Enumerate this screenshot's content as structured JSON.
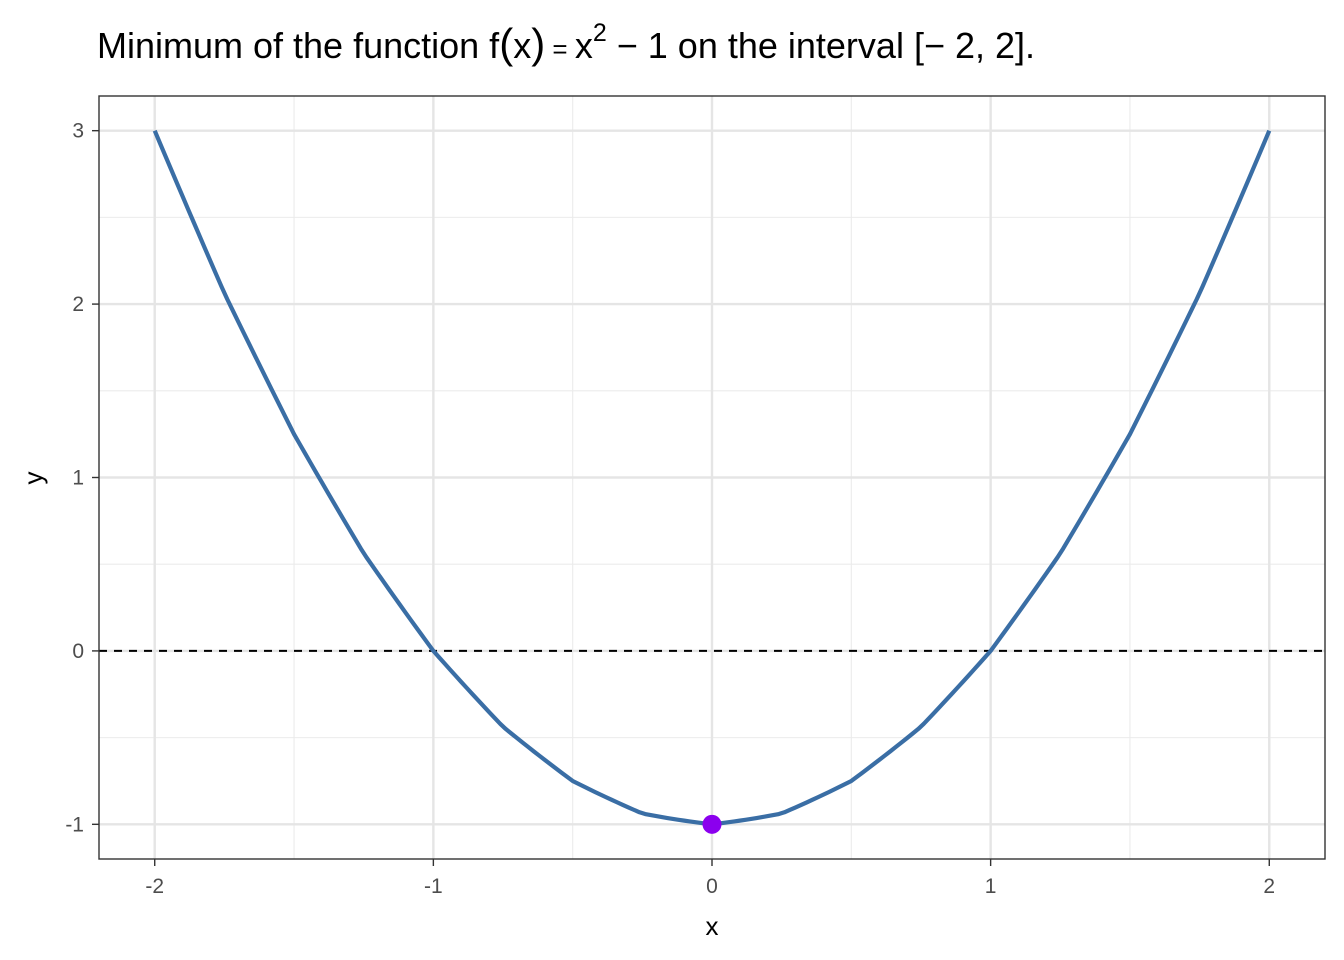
{
  "chart_data": {
    "type": "line",
    "title": {
      "pre": "Minimum of the function ",
      "fn": "f",
      "lparen": "(",
      "arg": "x",
      "rparen": ")",
      "eq": " = ",
      "base": "x",
      "exp": "2",
      "minus": " − 1",
      "post": " on the interval [",
      "int_lo": "− 2, 2",
      "close": "]."
    },
    "xlabel": "x",
    "ylabel": "y",
    "xlim": [
      -2.2,
      2.2
    ],
    "ylim": [
      -1.2,
      3.2
    ],
    "x_ticks": [
      -2,
      -1,
      0,
      1,
      2
    ],
    "x_tick_labels": [
      "-2",
      "-1",
      "0",
      "1",
      "2"
    ],
    "y_ticks": [
      -1,
      0,
      1,
      2,
      3
    ],
    "y_tick_labels": [
      "-1",
      "0",
      "1",
      "2",
      "3"
    ],
    "x_minor": [
      -1.5,
      -0.5,
      0.5,
      1.5
    ],
    "y_minor": [
      -0.5,
      0.5,
      1.5,
      2.5
    ],
    "grid": true,
    "series": [
      {
        "type": "line",
        "color": "#3a6ea5",
        "x": [
          -2.0,
          -1.75,
          -1.5,
          -1.25,
          -1.0,
          -0.75,
          -0.5,
          -0.25,
          0.0,
          0.25,
          0.5,
          0.75,
          1.0,
          1.25,
          1.5,
          1.75,
          2.0
        ],
        "y": [
          3.0,
          2.0625,
          1.25,
          0.5625,
          0.0,
          -0.4375,
          -0.75,
          -0.9375,
          -1.0,
          -0.9375,
          -0.75,
          -0.4375,
          0.0,
          0.5625,
          1.25,
          2.0625,
          3.0
        ]
      }
    ],
    "reference_line": {
      "y": 0,
      "style": "dashed",
      "color": "#000000"
    },
    "points": [
      {
        "x": 0,
        "y": -1,
        "color": "#8b00ee"
      }
    ]
  }
}
